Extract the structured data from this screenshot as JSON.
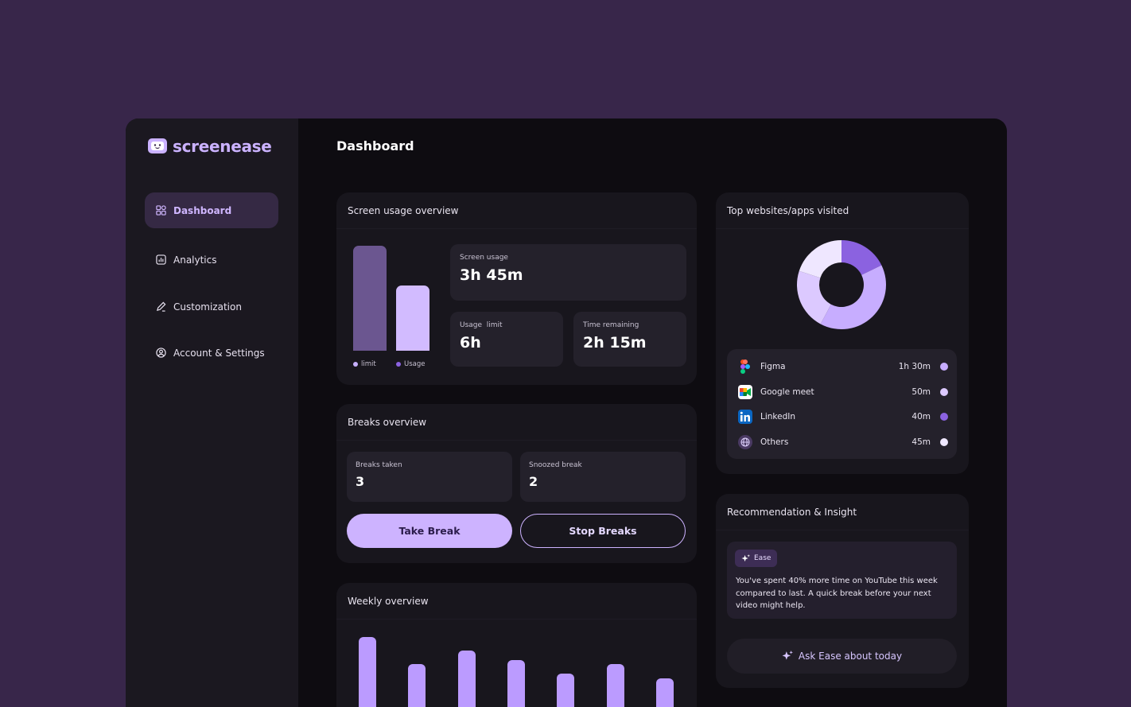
{
  "brand": {
    "name": "screenease",
    "accent": "#cbb2ff"
  },
  "sidebar": {
    "items": [
      {
        "label": "Dashboard",
        "icon": "grid-icon",
        "active": true
      },
      {
        "label": "Analytics",
        "icon": "chart-icon",
        "active": false
      },
      {
        "label": "Customization",
        "icon": "pencil-icon",
        "active": false
      },
      {
        "label": "Account & Settings",
        "icon": "user-circle-icon",
        "active": false
      }
    ]
  },
  "header": {
    "title": "Dashboard"
  },
  "usage_card": {
    "title": "Screen usage overview",
    "chart_data": {
      "type": "bar",
      "categories": [
        "limit",
        "Usage"
      ],
      "values": [
        6,
        3.75
      ],
      "unit": "h",
      "colors": [
        "#6b5690",
        "#d2bbff"
      ]
    },
    "legend": {
      "limit": "limit",
      "usage": "Usage"
    },
    "screen_usage": {
      "label": "Screen usage",
      "value": "3h 45m"
    },
    "usage_limit": {
      "label": "Usage  limit",
      "value": "6h"
    },
    "time_remaining": {
      "label": "Time remaining",
      "value": "2h 15m"
    }
  },
  "breaks_card": {
    "title": "Breaks overview",
    "breaks_taken": {
      "label": "Breaks taken",
      "value": "3"
    },
    "snoozed": {
      "label": "Snoozed break",
      "value": "2"
    },
    "take_break": "Take Break",
    "stop_breaks": "Stop Breaks"
  },
  "weekly_card": {
    "title": "Weekly overview",
    "chart_data": {
      "type": "bar",
      "values": [
        1.0,
        0.58,
        0.79,
        0.65,
        0.44,
        0.58,
        0.36
      ],
      "color": "#bb9bff"
    }
  },
  "top_apps_card": {
    "title": "Top websites/apps visited",
    "chart_data": {
      "type": "pie",
      "categories": [
        "Figma",
        "Google meet",
        "LinkedIn",
        "Others"
      ],
      "values": [
        90,
        50,
        40,
        45
      ],
      "colors": [
        "#c7adff",
        "#dcc9ff",
        "#8b62e0",
        "#efe7ff"
      ]
    },
    "apps": [
      {
        "name": "Figma",
        "time": "1h 30m",
        "icon": "figma-icon",
        "color": "#c7adff"
      },
      {
        "name": "Google meet",
        "time": "50m",
        "icon": "google-meet-icon",
        "color": "#dcc9ff"
      },
      {
        "name": "LinkedIn",
        "time": "40m",
        "icon": "linkedin-icon",
        "color": "#8b62e0"
      },
      {
        "name": "Others",
        "time": "45m",
        "icon": "globe-icon",
        "color": "#efe7ff"
      }
    ]
  },
  "insight_card": {
    "title": "Recommendation & Insight",
    "badge": "Ease",
    "text": "You've spent 40% more time on YouTube this week compared to last. A quick break before your next video might help.",
    "ask_button": "Ask Ease about today"
  }
}
